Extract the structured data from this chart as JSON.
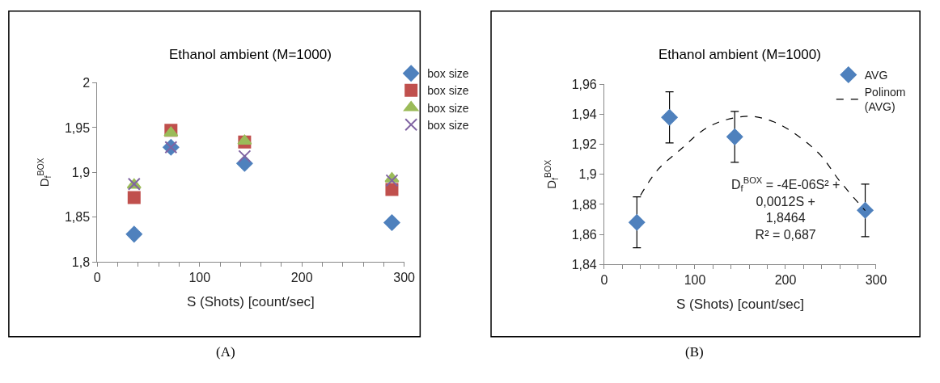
{
  "chart_data": [
    {
      "type": "scatter",
      "title": "Ethanol ambient (M=1000)",
      "xlabel": "S (Shots) [count/sec]",
      "ylabel": "D$_{f}$$^{BOX}$",
      "x": [
        36,
        72,
        144,
        288
      ],
      "series": [
        {
          "name": "box size",
          "color": "#4f81bd",
          "marker": "diamond",
          "values": [
            1.831,
            1.928,
            1.91,
            1.844
          ]
        },
        {
          "name": "box size",
          "color": "#c0504d",
          "marker": "square",
          "values": [
            1.872,
            1.947,
            1.934,
            1.881
          ]
        },
        {
          "name": "box size",
          "color": "#9bbb59",
          "marker": "triangle",
          "values": [
            1.886,
            1.944,
            1.935,
            1.893
          ]
        },
        {
          "name": "box size",
          "color": "#8064a2",
          "marker": "cross",
          "values": [
            1.887,
            1.928,
            1.918,
            1.891
          ]
        }
      ],
      "xlim": [
        0,
        300
      ],
      "xticks": [
        0,
        {
          "value": 20,
          "label": null
        },
        {
          "value": 40,
          "label": null
        },
        {
          "value": 60,
          "label": null
        },
        {
          "value": 80,
          "label": null
        },
        100,
        {
          "value": 120,
          "label": null
        },
        {
          "value": 140,
          "label": null
        },
        {
          "value": 160,
          "label": null
        },
        {
          "value": 180,
          "label": null
        },
        200,
        {
          "value": 220,
          "label": null
        },
        {
          "value": 240,
          "label": null
        },
        {
          "value": 260,
          "label": null
        },
        {
          "value": 280,
          "label": null
        },
        300
      ],
      "ylim": [
        1.8,
        2.0
      ],
      "yticks": [
        {
          "value": 1.8,
          "label": "1,8"
        },
        {
          "value": 1.85,
          "label": "1,85"
        },
        {
          "value": 1.9,
          "label": "1,9"
        },
        {
          "value": 1.95,
          "label": "1,95"
        },
        2
      ],
      "grid": false,
      "legend": "top right",
      "annotations": [
        "(A)"
      ]
    },
    {
      "type": "scatter",
      "title": "Ethanol ambient (M=1000)",
      "xlabel": "S (Shots) [count/sec]",
      "ylabel": "D$_{f}$$^{BOX}$",
      "x": [
        36,
        72,
        144,
        288
      ],
      "series": [
        {
          "name": "AVG",
          "color": "#4f81bd",
          "marker": "diamond",
          "values": [
            1.868,
            1.938,
            1.925,
            1.876
          ],
          "errors": [
            0.017,
            0.017,
            0.017,
            0.0175
          ]
        },
        {
          "name": "Polinom (AVG)",
          "type": "line",
          "color": "#000000",
          "line_style": "dashed",
          "marker": "none",
          "x": [
            40,
            59,
            86,
            108,
            131,
            161,
            187,
            213,
            239,
            259,
            288
          ],
          "values": [
            1.886,
            1.903,
            1.9175,
            1.929,
            1.9358,
            1.9387,
            1.935,
            1.926,
            1.9126,
            1.8962,
            1.8758
          ]
        }
      ],
      "xlim": [
        0,
        300
      ],
      "xticks": [
        0,
        {
          "value": 20,
          "label": null
        },
        {
          "value": 40,
          "label": null
        },
        {
          "value": 60,
          "label": null
        },
        {
          "value": 80,
          "label": null
        },
        100,
        {
          "value": 120,
          "label": null
        },
        {
          "value": 140,
          "label": null
        },
        {
          "value": 160,
          "label": null
        },
        {
          "value": 180,
          "label": null
        },
        200,
        {
          "value": 220,
          "label": null
        },
        {
          "value": 240,
          "label": null
        },
        {
          "value": 260,
          "label": null
        },
        {
          "value": 280,
          "label": null
        },
        300
      ],
      "ylim": [
        1.84,
        1.96
      ],
      "yticks": [
        {
          "value": 1.84,
          "label": "1,84"
        },
        {
          "value": 1.86,
          "label": "1,86"
        },
        {
          "value": 1.88,
          "label": "1,88"
        },
        {
          "value": 1.9,
          "label": "1,9"
        },
        {
          "value": 1.92,
          "label": "1,92"
        },
        {
          "value": 1.94,
          "label": "1,94"
        },
        {
          "value": 1.96,
          "label": "1,96"
        }
      ],
      "grid": false,
      "legend": "top right",
      "annotations": [
        "D$_{f}$$^{BOX}$ = -4E-06S² +\n0,0012S +\n1,8464\nR² = 0,687",
        "(B)"
      ]
    }
  ]
}
